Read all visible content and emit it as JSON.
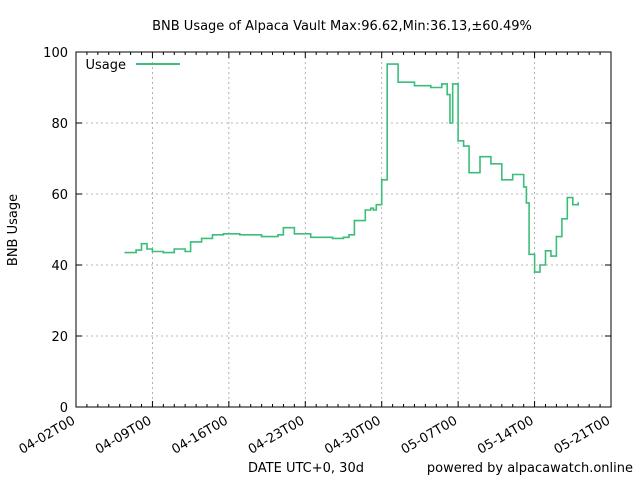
{
  "chart_data": {
    "type": "line",
    "title": "BNB Usage of Alpaca Vault Max:96.62,Min:36.13,±60.49%",
    "xlabel": "DATE UTC+0, 30d",
    "ylabel": "BNB Usage",
    "credit": "powered by alpacawatch.online",
    "x_ticks": [
      "04-02T00",
      "04-09T00",
      "04-16T00",
      "04-23T00",
      "04-30T00",
      "05-07T00",
      "05-14T00",
      "05-21T00"
    ],
    "y_ticks": [
      0,
      20,
      40,
      60,
      80,
      100
    ],
    "xlim": [
      "2021-04-02",
      "2021-05-21"
    ],
    "ylim": [
      0,
      100
    ],
    "grid": true,
    "legend_position": "top-left",
    "series": [
      {
        "name": "Usage",
        "color": "#3cbd7a",
        "x": [
          "2021-04-06T12:00",
          "2021-04-07T12:00",
          "2021-04-08T00:00",
          "2021-04-08T12:00",
          "2021-04-09T00:00",
          "2021-04-10T00:00",
          "2021-04-11T00:00",
          "2021-04-12T00:00",
          "2021-04-12T12:00",
          "2021-04-13T12:00",
          "2021-04-14T12:00",
          "2021-04-15T12:00",
          "2021-04-17T00:00",
          "2021-04-19T00:00",
          "2021-04-20T12:00",
          "2021-04-21T00:00",
          "2021-04-22T00:00",
          "2021-04-23T12:00",
          "2021-04-25T12:00",
          "2021-04-26T12:00",
          "2021-04-27T00:00",
          "2021-04-27T12:00",
          "2021-04-28T12:00",
          "2021-04-29T00:00",
          "2021-04-29T06:00",
          "2021-04-29T12:00",
          "2021-04-30T00:00",
          "2021-04-30T12:00",
          "2021-05-01T12:00",
          "2021-05-03T00:00",
          "2021-05-04T12:00",
          "2021-05-05T12:00",
          "2021-05-06T00:00",
          "2021-05-06T06:00",
          "2021-05-06T12:00",
          "2021-05-07T00:00",
          "2021-05-07T12:00",
          "2021-05-08T00:00",
          "2021-05-09T00:00",
          "2021-05-10T00:00",
          "2021-05-11T00:00",
          "2021-05-12T00:00",
          "2021-05-13T00:00",
          "2021-05-13T06:00",
          "2021-05-13T12:00",
          "2021-05-14T00:00",
          "2021-05-14T12:00",
          "2021-05-15T00:00",
          "2021-05-15T12:00",
          "2021-05-16T00:00",
          "2021-05-16T12:00",
          "2021-05-17T00:00",
          "2021-05-17T12:00",
          "2021-05-18T00:00"
        ],
        "values": [
          43.5,
          44.2,
          46.0,
          44.5,
          43.8,
          43.5,
          44.5,
          43.8,
          46.5,
          47.5,
          48.5,
          48.8,
          48.5,
          48.0,
          48.5,
          50.5,
          48.8,
          47.8,
          47.5,
          47.8,
          48.5,
          52.5,
          55.5,
          56.0,
          55.5,
          57.0,
          64.0,
          96.6,
          91.5,
          90.5,
          90.0,
          91.0,
          88.0,
          80.0,
          91.0,
          75.0,
          73.5,
          66.0,
          70.5,
          68.5,
          64.0,
          65.5,
          62.0,
          57.5,
          43.0,
          38.0,
          40.0,
          44.0,
          42.5,
          48.0,
          53.0,
          59.0,
          57.0,
          57.5
        ]
      }
    ]
  }
}
